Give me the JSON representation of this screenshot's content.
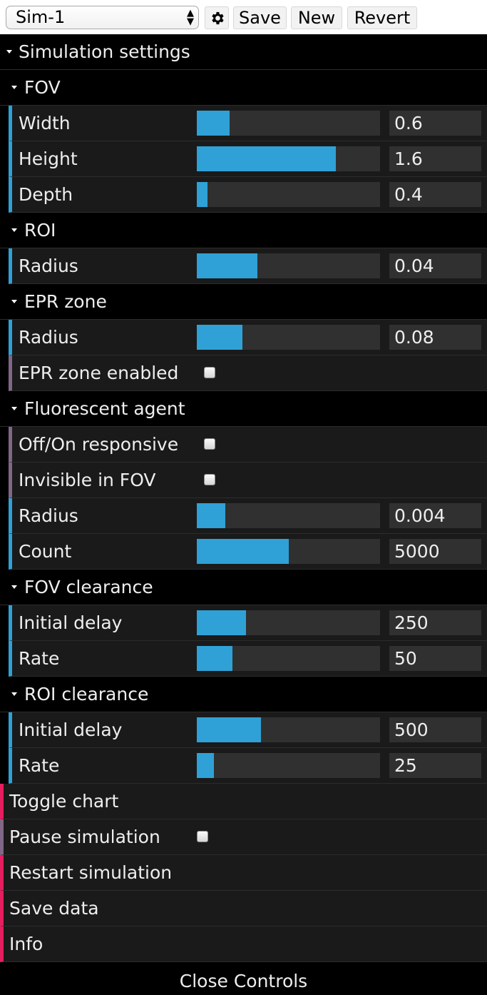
{
  "preset": {
    "value": "Sim-1",
    "arrow_up": "▲",
    "arrow_down": "▼"
  },
  "toolbar": {
    "gear_icon": "gear-icon",
    "save": "Save",
    "new": "New",
    "revert": "Revert"
  },
  "panel": {
    "root_title": "Simulation settings",
    "fov": {
      "title": "FOV",
      "width": {
        "label": "Width",
        "value": "0.6",
        "fraction": 0.18
      },
      "height": {
        "label": "Height",
        "value": "1.6",
        "fraction": 0.76
      },
      "depth": {
        "label": "Depth",
        "value": "0.4",
        "fraction": 0.06
      }
    },
    "roi": {
      "title": "ROI",
      "radius": {
        "label": "Radius",
        "value": "0.04",
        "fraction": 0.33
      }
    },
    "epr": {
      "title": "EPR zone",
      "radius": {
        "label": "Radius",
        "value": "0.08",
        "fraction": 0.25
      },
      "enabled": {
        "label": "EPR zone enabled",
        "checked": false
      }
    },
    "agent": {
      "title": "Fluorescent agent",
      "responsive": {
        "label": "Off/On responsive",
        "checked": false
      },
      "invisible": {
        "label": "Invisible in FOV",
        "checked": false
      },
      "radius": {
        "label": "Radius",
        "value": "0.004",
        "fraction": 0.155
      },
      "count": {
        "label": "Count",
        "value": "5000",
        "fraction": 0.5
      }
    },
    "fov_clearance": {
      "title": "FOV clearance",
      "initial_delay": {
        "label": "Initial delay",
        "value": "250",
        "fraction": 0.27
      },
      "rate": {
        "label": "Rate",
        "value": "50",
        "fraction": 0.195
      }
    },
    "roi_clearance": {
      "title": "ROI clearance",
      "initial_delay": {
        "label": "Initial delay",
        "value": "500",
        "fraction": 0.35
      },
      "rate": {
        "label": "Rate",
        "value": "25",
        "fraction": 0.095
      }
    },
    "actions": {
      "toggle_chart": "Toggle chart",
      "pause": {
        "label": "Pause simulation",
        "checked": false
      },
      "restart": "Restart simulation",
      "save_data": "Save data",
      "info": "Info"
    },
    "close": "Close Controls"
  },
  "colors": {
    "slider_fill": "#2fa1d6",
    "number_accent": "#2fa1d6",
    "boolean_accent": "#806787",
    "function_accent": "#e61d5f",
    "row_bg": "#1a1a1a",
    "field_bg": "#303030"
  }
}
